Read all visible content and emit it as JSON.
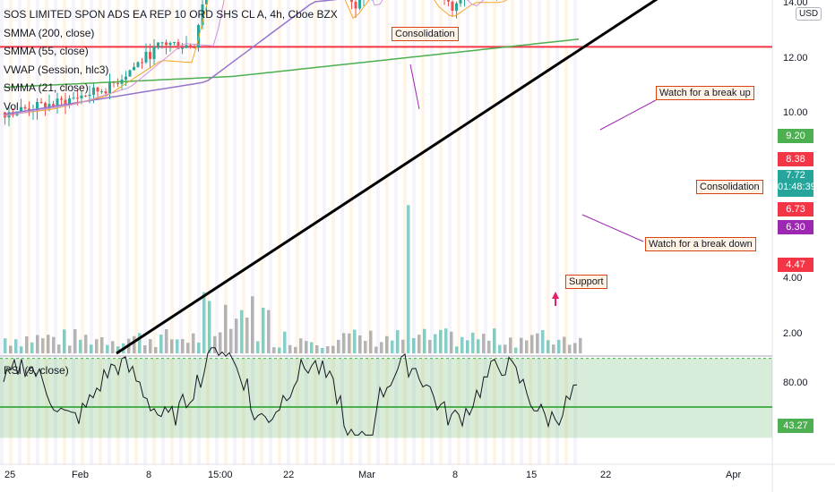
{
  "chart_data": {
    "type": "candlestick",
    "title": "SOS LIMITED SPON ADS EA REP 10 ORD SHS CL A, 4h, Cboe BZX",
    "currency": "USD",
    "indicators": [
      "SMMA (200, close)",
      "SMMA (55, close)",
      "VWAP (Session, hlc3)",
      "SMMA (21, close)",
      "Vol"
    ],
    "rsi_label": "RSI (9, close)",
    "price_axis_ticks": [
      "14.00",
      "12.00",
      "10.00",
      "4.00",
      "2.00"
    ],
    "rsi_axis_ticks": [
      "80.00"
    ],
    "x_tick_labels": [
      "25",
      "Feb",
      "8",
      "15:00",
      "22",
      "Mar",
      "8",
      "15",
      "22",
      "Apr"
    ],
    "horizontal_levels": [
      {
        "label": "9.20",
        "value": 9.2,
        "color": "#4caf50"
      },
      {
        "label": "8.38",
        "value": 8.38,
        "color": "#f23645"
      },
      {
        "label": "6.73",
        "value": 6.73,
        "color": "#f23645"
      },
      {
        "label": "6.30",
        "value": 6.3,
        "color": "#9c27b0"
      },
      {
        "label": "4.47",
        "value": 4.47,
        "color": "#f23645"
      }
    ],
    "last_price": {
      "value": "7.72",
      "countdown": "01:48:39"
    },
    "rsi_last": "43.27",
    "annotations": {
      "consolidation_top": "Consolidation",
      "consolidation_box": "Consolidation",
      "break_up": "Watch for a break up",
      "break_down": "Watch for a break down",
      "support": "Support"
    }
  }
}
